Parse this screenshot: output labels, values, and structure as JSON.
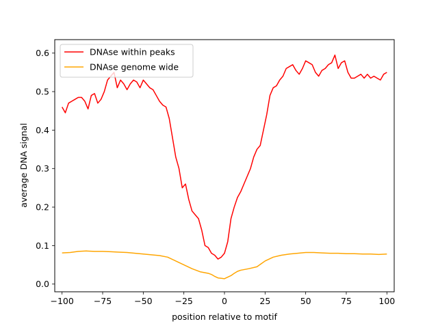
{
  "chart_data": {
    "type": "line",
    "title": "",
    "xlabel": "position relative to motif",
    "ylabel": "average DNA signal",
    "xlim": [
      -104.5,
      104.5
    ],
    "ylim": [
      -0.02,
      0.635
    ],
    "xticks": [
      -100,
      -75,
      -50,
      -25,
      0,
      25,
      50,
      75,
      100
    ],
    "xtick_labels": [
      "−100",
      "−75",
      "−50",
      "−25",
      "0",
      "25",
      "50",
      "75",
      "100"
    ],
    "yticks": [
      0.0,
      0.1,
      0.2,
      0.3,
      0.4,
      0.5,
      0.6
    ],
    "ytick_labels": [
      "0.0",
      "0.1",
      "0.2",
      "0.3",
      "0.4",
      "0.5",
      "0.6"
    ],
    "grid": false,
    "legend_position": "top-left",
    "series": [
      {
        "name": "DNAse within peaks",
        "color": "#ff0000",
        "x": [
          -100,
          -98,
          -96,
          -94,
          -92,
          -90,
          -88,
          -86,
          -84,
          -82,
          -80,
          -78,
          -76,
          -74,
          -72,
          -70,
          -68,
          -66,
          -64,
          -62,
          -60,
          -58,
          -56,
          -54,
          -52,
          -50,
          -48,
          -46,
          -44,
          -42,
          -40,
          -38,
          -36,
          -34,
          -32,
          -30,
          -28,
          -26,
          -24,
          -22,
          -20,
          -18,
          -16,
          -14,
          -12,
          -10,
          -8,
          -6,
          -4,
          -2,
          0,
          2,
          4,
          6,
          8,
          10,
          12,
          14,
          16,
          18,
          20,
          22,
          24,
          26,
          28,
          30,
          32,
          34,
          36,
          38,
          40,
          42,
          44,
          46,
          48,
          50,
          52,
          54,
          56,
          58,
          60,
          62,
          64,
          66,
          68,
          70,
          72,
          74,
          76,
          78,
          80,
          82,
          84,
          86,
          88,
          90,
          92,
          94,
          96,
          98,
          100
        ],
        "values": [
          0.46,
          0.445,
          0.47,
          0.475,
          0.48,
          0.485,
          0.485,
          0.475,
          0.455,
          0.49,
          0.495,
          0.47,
          0.48,
          0.5,
          0.53,
          0.54,
          0.55,
          0.51,
          0.53,
          0.52,
          0.505,
          0.52,
          0.53,
          0.525,
          0.51,
          0.53,
          0.52,
          0.51,
          0.505,
          0.49,
          0.475,
          0.465,
          0.46,
          0.43,
          0.38,
          0.33,
          0.3,
          0.25,
          0.26,
          0.22,
          0.19,
          0.18,
          0.17,
          0.14,
          0.1,
          0.095,
          0.08,
          0.075,
          0.065,
          0.07,
          0.08,
          0.11,
          0.17,
          0.2,
          0.225,
          0.24,
          0.26,
          0.28,
          0.3,
          0.33,
          0.35,
          0.36,
          0.4,
          0.44,
          0.49,
          0.51,
          0.515,
          0.53,
          0.54,
          0.56,
          0.565,
          0.57,
          0.555,
          0.545,
          0.56,
          0.58,
          0.575,
          0.57,
          0.55,
          0.54,
          0.555,
          0.56,
          0.57,
          0.575,
          0.595,
          0.56,
          0.575,
          0.58,
          0.55,
          0.535,
          0.535,
          0.54,
          0.545,
          0.535,
          0.545,
          0.535,
          0.54,
          0.535,
          0.53,
          0.545,
          0.55
        ]
      },
      {
        "name": "DNAse genome wide",
        "color": "#ffa500",
        "x": [
          -100,
          -95,
          -90,
          -85,
          -80,
          -75,
          -70,
          -65,
          -60,
          -55,
          -50,
          -45,
          -40,
          -35,
          -30,
          -25,
          -20,
          -15,
          -10,
          -8,
          -6,
          -4,
          -2,
          0,
          2,
          4,
          6,
          8,
          10,
          15,
          20,
          25,
          30,
          35,
          40,
          45,
          50,
          55,
          60,
          65,
          70,
          75,
          80,
          85,
          90,
          95,
          100
        ],
        "values": [
          0.081,
          0.082,
          0.085,
          0.086,
          0.085,
          0.085,
          0.084,
          0.083,
          0.082,
          0.08,
          0.078,
          0.076,
          0.074,
          0.07,
          0.06,
          0.05,
          0.04,
          0.032,
          0.028,
          0.025,
          0.02,
          0.016,
          0.015,
          0.014,
          0.018,
          0.022,
          0.028,
          0.033,
          0.036,
          0.04,
          0.045,
          0.06,
          0.07,
          0.075,
          0.078,
          0.08,
          0.082,
          0.082,
          0.081,
          0.08,
          0.08,
          0.079,
          0.079,
          0.078,
          0.078,
          0.077,
          0.078
        ]
      }
    ]
  }
}
